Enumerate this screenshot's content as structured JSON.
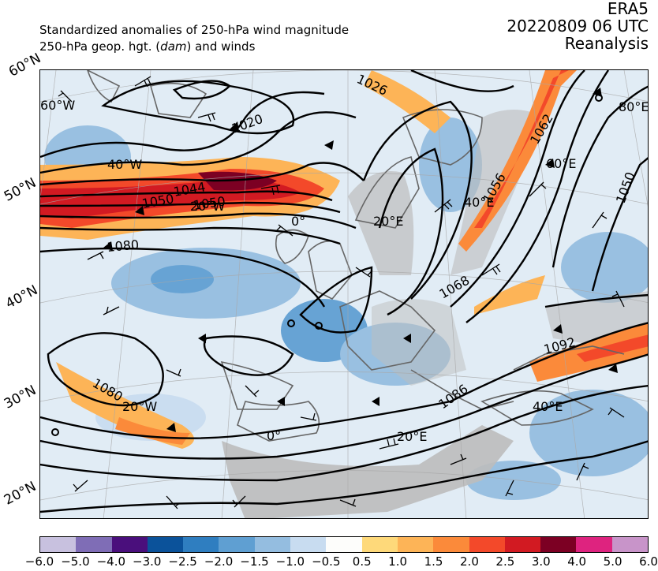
{
  "title": {
    "line1": "Standardized anomalies of 250-hPa wind magnitude",
    "line2_prefix": "250-hPa geop. hgt. (",
    "line2_italic": "dam",
    "line2_suffix": ") and winds"
  },
  "header_right": {
    "source": "ERA5",
    "datetime": "20220809 06 UTC",
    "product": "Reanalysis"
  },
  "lat_labels": [
    "60°N",
    "50°N",
    "40°N",
    "30°N",
    "20°N"
  ],
  "lon_labels": [
    "60°W",
    "40°W",
    "20°W",
    "0°",
    "20°E",
    "40°E",
    "60°E",
    "80°E",
    "20°W",
    "0°",
    "20°E",
    "40°E"
  ],
  "contour_labels": [
    "1020",
    "1050",
    "1044",
    "1050",
    "1080",
    "1080",
    "1062",
    "1056",
    "1050",
    "1068",
    "1086",
    "1092",
    "1026"
  ],
  "colorbar": {
    "colors": [
      "#c8c1df",
      "#7f6db6",
      "#4a0f7c",
      "#0b529a",
      "#2f7ec0",
      "#5f9fd2",
      "#94bde0",
      "#c8dcf0",
      "#fdfdfb",
      "#fed97a",
      "#fdb457",
      "#fb8a3a",
      "#f3492a",
      "#d21a22",
      "#7c0023",
      "#de237f",
      "#c894c9"
    ],
    "tick_labels": [
      "−6.0",
      "−5.0",
      "−4.0",
      "−3.0",
      "−2.5",
      "−2.0",
      "−1.5",
      "−1.0",
      "−0.5",
      "0.5",
      "1.0",
      "1.5",
      "2.0",
      "2.5",
      "3.0",
      "4.0",
      "5.0",
      "6.0"
    ]
  }
}
